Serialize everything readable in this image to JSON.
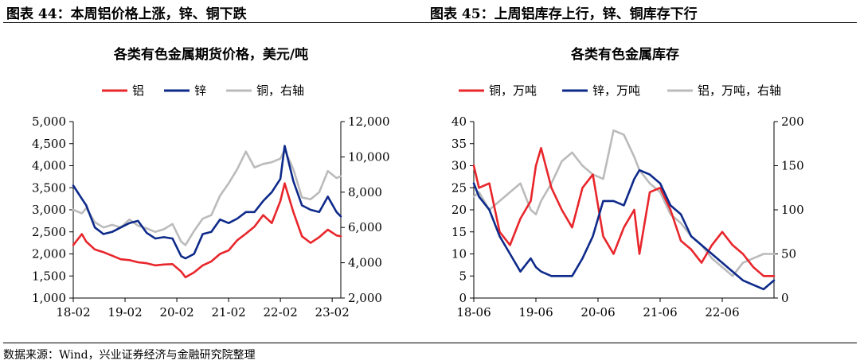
{
  "figures": {
    "left_title": "图表 44：本周铝价格上涨，锌、铜下跌",
    "right_title": "图表 45：上周铝库存上行，锌、铜库存下行"
  },
  "footer": {
    "source": "数据来源：Wind，兴业证券经济与金融研究院整理"
  },
  "colors": {
    "red": "#E8262B",
    "navy": "#0E2A8A",
    "gray": "#BBBBBB"
  },
  "chart_data": [
    {
      "type": "line",
      "title": "各类有色金属期货价格，美元/吨",
      "x_ticks": [
        "18-02",
        "19-02",
        "20-02",
        "21-02",
        "22-02",
        "23-02"
      ],
      "x_range": [
        "2018-02",
        "2023-04"
      ],
      "ylim_left": [
        1000,
        5000
      ],
      "yticks_left": [
        "1,000",
        "1,500",
        "2,000",
        "2,500",
        "3,000",
        "3,500",
        "4,000",
        "4,500",
        "5,000"
      ],
      "ylim_right": [
        2000,
        12000
      ],
      "yticks_right": [
        "2,000",
        "4,000",
        "6,000",
        "8,000",
        "10,000",
        "12,000"
      ],
      "legend_position": "top",
      "series": [
        {
          "name": "铝",
          "axis": "left",
          "color": "#E8262B",
          "x": [
            "2018-02",
            "2018-04",
            "2018-05",
            "2018-07",
            "2018-09",
            "2018-11",
            "2019-01",
            "2019-03",
            "2019-05",
            "2019-07",
            "2019-09",
            "2019-11",
            "2020-01",
            "2020-03",
            "2020-04",
            "2020-06",
            "2020-08",
            "2020-10",
            "2020-12",
            "2021-02",
            "2021-04",
            "2021-06",
            "2021-08",
            "2021-10",
            "2021-12",
            "2022-02",
            "2022-03",
            "2022-05",
            "2022-07",
            "2022-09",
            "2022-11",
            "2023-01",
            "2023-03",
            "2023-04"
          ],
          "values": [
            2200,
            2450,
            2280,
            2100,
            2040,
            1960,
            1880,
            1860,
            1810,
            1790,
            1740,
            1760,
            1770,
            1600,
            1470,
            1580,
            1740,
            1830,
            2000,
            2080,
            2310,
            2460,
            2620,
            2880,
            2700,
            3200,
            3600,
            2950,
            2400,
            2250,
            2380,
            2550,
            2420,
            2400
          ]
        },
        {
          "name": "锌",
          "axis": "left",
          "color": "#0E2A8A",
          "x": [
            "2018-02",
            "2018-04",
            "2018-05",
            "2018-07",
            "2018-09",
            "2018-11",
            "2019-01",
            "2019-03",
            "2019-05",
            "2019-07",
            "2019-09",
            "2019-11",
            "2020-01",
            "2020-03",
            "2020-04",
            "2020-06",
            "2020-08",
            "2020-10",
            "2020-12",
            "2021-02",
            "2021-04",
            "2021-06",
            "2021-08",
            "2021-10",
            "2021-12",
            "2022-02",
            "2022-03",
            "2022-05",
            "2022-07",
            "2022-09",
            "2022-11",
            "2023-01",
            "2023-03",
            "2023-04"
          ],
          "values": [
            3550,
            3250,
            3100,
            2600,
            2450,
            2500,
            2600,
            2700,
            2750,
            2480,
            2350,
            2380,
            2350,
            1950,
            1900,
            2000,
            2450,
            2500,
            2780,
            2700,
            2800,
            2950,
            2950,
            3200,
            3400,
            3700,
            4450,
            3650,
            3100,
            3000,
            2950,
            3300,
            2950,
            2850
          ]
        },
        {
          "name": "铜，右轴",
          "axis": "right",
          "color": "#BBBBBB",
          "x": [
            "2018-02",
            "2018-04",
            "2018-05",
            "2018-07",
            "2018-09",
            "2018-11",
            "2019-01",
            "2019-03",
            "2019-05",
            "2019-07",
            "2019-09",
            "2019-11",
            "2020-01",
            "2020-03",
            "2020-04",
            "2020-06",
            "2020-08",
            "2020-10",
            "2020-12",
            "2021-02",
            "2021-04",
            "2021-06",
            "2021-08",
            "2021-10",
            "2021-12",
            "2022-02",
            "2022-03",
            "2022-05",
            "2022-07",
            "2022-09",
            "2022-11",
            "2023-01",
            "2023-03",
            "2023-04"
          ],
          "values": [
            7000,
            6800,
            7100,
            6300,
            6000,
            6150,
            6000,
            6450,
            6100,
            5950,
            5750,
            5900,
            6200,
            5200,
            5000,
            5800,
            6500,
            6700,
            7800,
            8500,
            9300,
            10300,
            9400,
            9600,
            9700,
            9900,
            10400,
            9300,
            7700,
            7600,
            8000,
            9200,
            8800,
            8900
          ]
        }
      ]
    },
    {
      "type": "line",
      "title": "各类有色金属库存",
      "x_ticks": [
        "18-06",
        "19-06",
        "20-06",
        "21-06",
        "22-06"
      ],
      "x_range": [
        "2018-06",
        "2023-04"
      ],
      "ylim_left": [
        0,
        40
      ],
      "yticks_left": [
        "0",
        "5",
        "10",
        "15",
        "20",
        "25",
        "30",
        "35",
        "40"
      ],
      "ylim_right": [
        0,
        200
      ],
      "yticks_right": [
        "0",
        "50",
        "100",
        "150",
        "200"
      ],
      "legend_position": "top",
      "series": [
        {
          "name": "铜，万吨",
          "axis": "left",
          "color": "#E8262B",
          "x": [
            "2018-06",
            "2018-07",
            "2018-09",
            "2018-11",
            "2019-01",
            "2019-03",
            "2019-05",
            "2019-06",
            "2019-07",
            "2019-09",
            "2019-11",
            "2020-01",
            "2020-03",
            "2020-05",
            "2020-07",
            "2020-09",
            "2020-11",
            "2021-01",
            "2021-02",
            "2021-04",
            "2021-06",
            "2021-08",
            "2021-10",
            "2021-12",
            "2022-02",
            "2022-04",
            "2022-06",
            "2022-08",
            "2022-10",
            "2022-12",
            "2023-02",
            "2023-04"
          ],
          "values": [
            30,
            25,
            26,
            15,
            12,
            18,
            22,
            30,
            34,
            25,
            20,
            16,
            25,
            28,
            14,
            10,
            16,
            20,
            10,
            24,
            25,
            20,
            13,
            11,
            8,
            12,
            15,
            12,
            10,
            7,
            5,
            5
          ]
        },
        {
          "name": "锌，万吨",
          "axis": "left",
          "color": "#0E2A8A",
          "x": [
            "2018-06",
            "2018-07",
            "2018-09",
            "2018-11",
            "2019-01",
            "2019-03",
            "2019-05",
            "2019-06",
            "2019-07",
            "2019-09",
            "2019-11",
            "2020-01",
            "2020-03",
            "2020-05",
            "2020-07",
            "2020-09",
            "2020-11",
            "2021-01",
            "2021-02",
            "2021-04",
            "2021-06",
            "2021-08",
            "2021-10",
            "2021-12",
            "2022-02",
            "2022-04",
            "2022-06",
            "2022-08",
            "2022-10",
            "2022-12",
            "2023-02",
            "2023-04"
          ],
          "values": [
            26,
            23,
            20,
            14,
            10,
            6,
            9,
            7,
            6,
            5,
            5,
            5,
            9,
            14,
            22,
            22,
            21,
            27,
            29,
            28,
            26,
            21,
            19,
            14,
            12,
            10,
            8,
            6,
            4,
            3,
            2,
            4
          ]
        },
        {
          "name": "铝，万吨，右轴",
          "axis": "right",
          "color": "#BBBBBB",
          "x": [
            "2018-06",
            "2018-07",
            "2018-09",
            "2018-11",
            "2019-01",
            "2019-03",
            "2019-05",
            "2019-06",
            "2019-07",
            "2019-09",
            "2019-11",
            "2020-01",
            "2020-03",
            "2020-05",
            "2020-07",
            "2020-09",
            "2020-11",
            "2021-01",
            "2021-02",
            "2021-04",
            "2021-06",
            "2021-08",
            "2021-10",
            "2021-12",
            "2022-02",
            "2022-04",
            "2022-06",
            "2022-08",
            "2022-10",
            "2022-12",
            "2023-02",
            "2023-04"
          ],
          "values": [
            115,
            120,
            100,
            110,
            120,
            130,
            100,
            95,
            110,
            130,
            155,
            165,
            150,
            140,
            135,
            190,
            185,
            160,
            145,
            130,
            120,
            95,
            85,
            70,
            60,
            45,
            35,
            25,
            40,
            45,
            50,
            50
          ]
        }
      ]
    }
  ]
}
